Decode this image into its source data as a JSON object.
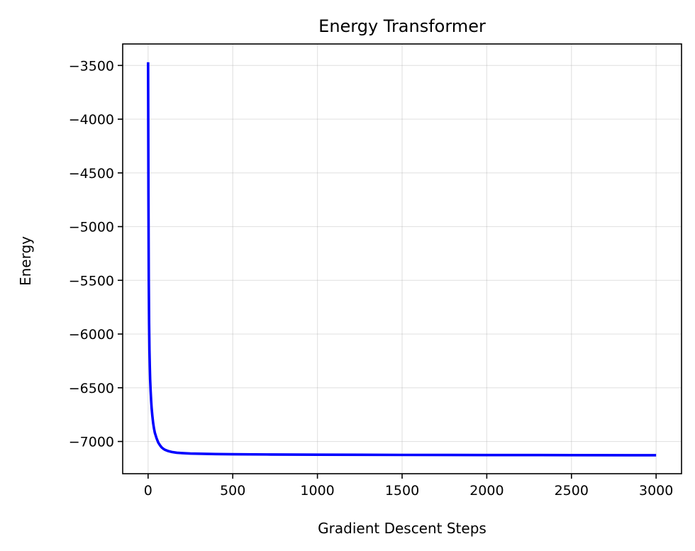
{
  "chart_data": {
    "type": "line",
    "title": "Energy Transformer",
    "xlabel": "Gradient Descent Steps",
    "ylabel": "Energy",
    "xlim": [
      -150,
      3150
    ],
    "ylim": [
      -7300,
      -3300
    ],
    "xticks": [
      0,
      500,
      1000,
      1500,
      2000,
      2500,
      3000
    ],
    "xtick_labels": [
      "0",
      "500",
      "1000",
      "1500",
      "2000",
      "2500",
      "3000"
    ],
    "yticks": [
      -3500,
      -4000,
      -4500,
      -5000,
      -5500,
      -6000,
      -6500,
      -7000
    ],
    "ytick_labels": [
      "−3500",
      "−4000",
      "−4500",
      "−5000",
      "−5500",
      "−6000",
      "−6500",
      "−7000"
    ],
    "grid": true,
    "series": [
      {
        "color": "#0000ff",
        "x": [
          0,
          2,
          4,
          6,
          8,
          10,
          12,
          15,
          18,
          21,
          25,
          30,
          35,
          40,
          50,
          60,
          70,
          80,
          90,
          100,
          120,
          140,
          170,
          200,
          250,
          300,
          400,
          500,
          700,
          1000,
          1500,
          2000,
          2500,
          3000
        ],
        "y": [
          -3470,
          -4700,
          -5500,
          -5900,
          -6150,
          -6300,
          -6420,
          -6530,
          -6620,
          -6690,
          -6760,
          -6830,
          -6880,
          -6920,
          -6970,
          -7010,
          -7035,
          -7055,
          -7068,
          -7078,
          -7090,
          -7098,
          -7105,
          -7108,
          -7112,
          -7114,
          -7117,
          -7119,
          -7121,
          -7123,
          -7125,
          -7126,
          -7127,
          -7128
        ]
      }
    ]
  }
}
